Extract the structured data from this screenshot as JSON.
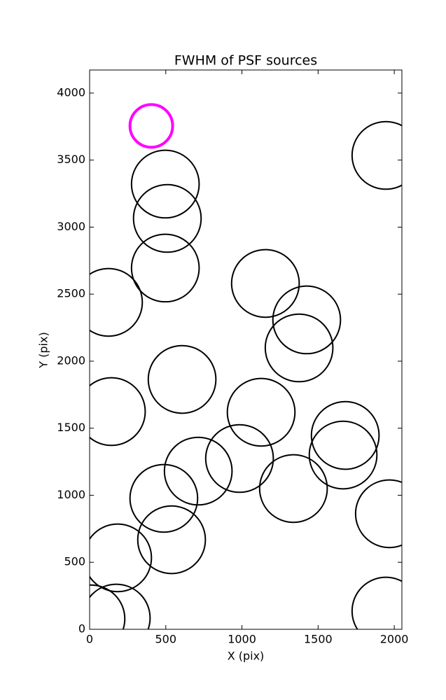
{
  "chart_data": {
    "type": "scatter",
    "title": "FWHM of PSF sources",
    "x_label": "X (pix)",
    "y_label": "Y (pix)",
    "x": [
      405,
      497,
      510,
      497,
      124,
      1154,
      1425,
      1375,
      607,
      143,
      1126,
      1678,
      1664,
      984,
      713,
      1338,
      487,
      1968,
      538,
      184,
      1945,
      1945,
      175,
      9
    ],
    "values": [
      3755,
      3321,
      3065,
      2695,
      2439,
      2580,
      2308,
      2099,
      1864,
      1624,
      1619,
      1446,
      1300,
      1274,
      1180,
      1050,
      977,
      862,
      668,
      533,
      3535,
      136,
      84,
      78
    ],
    "sizes": [
      140,
      222,
      222,
      222,
      222,
      222,
      222,
      222,
      222,
      222,
      222,
      222,
      222,
      222,
      222,
      222,
      222,
      222,
      222,
      222,
      222,
      222,
      222,
      222
    ],
    "colors": [
      "#ff00ff",
      "#000000",
      "#000000",
      "#000000",
      "#000000",
      "#000000",
      "#000000",
      "#000000",
      "#000000",
      "#000000",
      "#000000",
      "#000000",
      "#000000",
      "#000000",
      "#000000",
      "#000000",
      "#000000",
      "#000000",
      "#000000",
      "#000000",
      "#000000",
      "#000000",
      "#000000",
      "#000000"
    ],
    "xlim": [
      0,
      2050
    ],
    "ylim": [
      0,
      4172
    ],
    "xticks": [
      0,
      500,
      1000,
      1500,
      2000
    ],
    "yticks": [
      0,
      500,
      1000,
      1500,
      2000,
      2500,
      3000,
      3500,
      4000
    ],
    "grid": false
  }
}
